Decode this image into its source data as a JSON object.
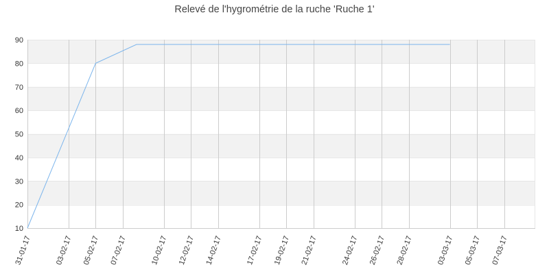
{
  "chart_data": {
    "type": "line",
    "title": "Relevé de l'hygrométrie de la ruche 'Ruche 1'",
    "xlabel": "",
    "ylabel": "",
    "ylim": [
      10,
      90
    ],
    "y_ticks": [
      10,
      20,
      30,
      40,
      50,
      60,
      70,
      80,
      90
    ],
    "x_ticks": [
      "31-01-17",
      "03-02-17",
      "05-02-17",
      "07-02-17",
      "10-02-17",
      "12-02-17",
      "14-02-17",
      "17-02-17",
      "19-02-17",
      "21-02-17",
      "24-02-17",
      "26-02-17",
      "28-02-17",
      "03-03-17",
      "05-03-17",
      "07-03-17"
    ],
    "grid": true,
    "legend": "none",
    "series": [
      {
        "color": "#7cb5ec",
        "points": [
          {
            "x": "31-01-17",
            "y": 10
          },
          {
            "x": "05-02-17",
            "y": 80
          },
          {
            "x": "08-02-17",
            "y": 88
          },
          {
            "x": "03-03-17",
            "y": 88
          }
        ]
      }
    ]
  }
}
